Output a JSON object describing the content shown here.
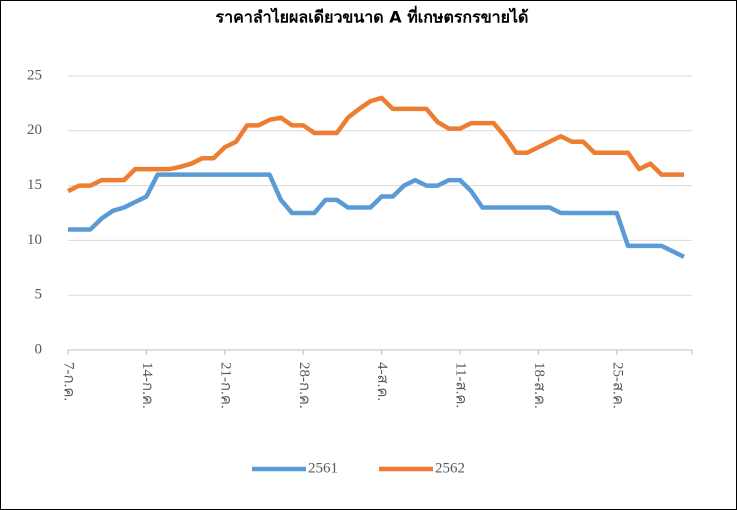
{
  "chart_data": {
    "type": "line",
    "title": "ราคาลำไยผลเดียวขนาด A ที่เกษตรกรขายได้",
    "categories": [
      "7-ก.ค.",
      null,
      null,
      null,
      null,
      null,
      null,
      "14-ก.ค.",
      null,
      null,
      null,
      null,
      null,
      null,
      "21-ก.ค.",
      null,
      null,
      null,
      null,
      null,
      null,
      "28-ก.ค.",
      null,
      null,
      null,
      null,
      null,
      null,
      "4-ส.ค.",
      null,
      null,
      null,
      null,
      null,
      null,
      "11-ส.ค.",
      null,
      null,
      null,
      null,
      null,
      null,
      "18-ส.ค.",
      null,
      null,
      null,
      null,
      null,
      null,
      "25-ส.ค.",
      null,
      null,
      null,
      null,
      null,
      null
    ],
    "series": [
      {
        "name": "2561",
        "color": "#5b9bd5",
        "values": [
          11,
          11,
          11,
          12,
          12.7,
          13,
          13.5,
          14,
          16,
          16,
          16,
          16,
          16,
          16,
          16,
          16,
          16,
          16,
          16,
          13.7,
          12.5,
          12.5,
          12.5,
          13.7,
          13.7,
          13,
          13,
          13,
          14,
          14,
          15,
          15.5,
          15,
          15,
          15.5,
          15.5,
          14.5,
          13,
          13,
          13,
          13,
          13,
          13,
          13,
          12.5,
          12.5,
          12.5,
          12.5,
          12.5,
          12.5,
          9.5,
          9.5,
          9.5,
          9.5,
          9,
          8.5
        ]
      },
      {
        "name": "2562",
        "color": "#ed7d31",
        "values": [
          14.5,
          15,
          15,
          15.5,
          15.5,
          15.5,
          16.5,
          16.5,
          16.5,
          16.5,
          16.7,
          17,
          17.5,
          17.5,
          18.5,
          19,
          20.5,
          20.5,
          21,
          21.2,
          20.5,
          20.5,
          19.8,
          19.8,
          19.8,
          21.2,
          22,
          22.7,
          23,
          22,
          22,
          22,
          22,
          20.8,
          20.2,
          20.2,
          20.7,
          20.7,
          20.7,
          19.5,
          18,
          18,
          18.5,
          19,
          19.5,
          19,
          19,
          18,
          18,
          18,
          18,
          16.5,
          17,
          16,
          16,
          16
        ]
      }
    ],
    "ylim": [
      0,
      25
    ],
    "yticks": [
      0,
      5,
      10,
      15,
      20,
      25
    ],
    "grid": true,
    "legend": "bottom"
  }
}
